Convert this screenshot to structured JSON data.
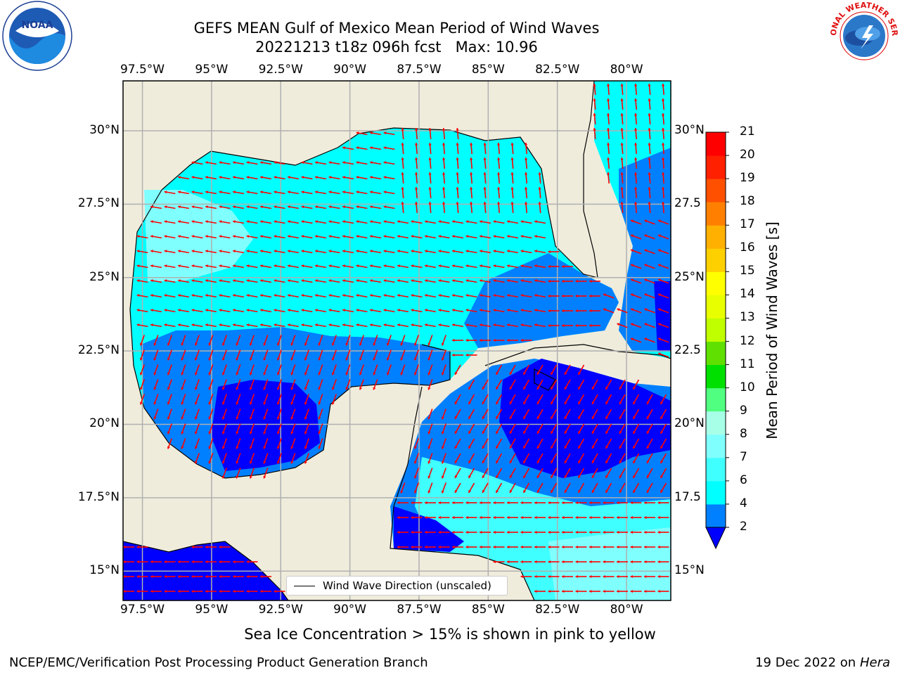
{
  "title": {
    "line1": "GEFS MEAN Gulf of Mexico Mean Period of Wind Waves",
    "line2": "20221213 t18z 096h fcst   Max: 10.96"
  },
  "map": {
    "lon_labels": [
      "97.5°W",
      "95°W",
      "92.5°W",
      "90°W",
      "87.5°W",
      "85°W",
      "82.5°W",
      "80°W"
    ],
    "lat_labels_left": [
      "30°N",
      "27.5°N",
      "25°N",
      "22.5°N",
      "20°N",
      "17.5°N",
      "15°N"
    ],
    "lat_labels_right": [
      "30°N",
      "27.5",
      "25°N",
      "22.5",
      "20°N",
      "17.5",
      "15°N"
    ],
    "extent": {
      "lon": [
        -98.2,
        -78.4
      ],
      "lat": [
        14.0,
        31.7
      ]
    },
    "colors": {
      "land": "#efecdc",
      "grid": "#b0b0b0",
      "vector": "#ff0000",
      "coast": "#000000"
    }
  },
  "legend": {
    "label": "Wind Wave Direction (unscaled)"
  },
  "colorbar": {
    "title": "Mean Period of Wind Waves [s]",
    "levels": [
      "2",
      "4",
      "6",
      "7",
      "8",
      "9",
      "10",
      "11",
      "12",
      "13",
      "14",
      "15",
      "16",
      "17",
      "18",
      "19",
      "20",
      "21"
    ],
    "colors": [
      "#0000ff",
      "#0080ff",
      "#00ffff",
      "#40ffff",
      "#80ffff",
      "#a8ffe8",
      "#50ff80",
      "#00e000",
      "#60e000",
      "#c0ff00",
      "#e8ff00",
      "#ffff00",
      "#ffd000",
      "#ffb000",
      "#ff8000",
      "#ff5000",
      "#ff2000",
      "#ff0000"
    ],
    "extend": "min"
  },
  "subtitle": "Sea Ice Concentration > 15% is shown in pink to yellow",
  "footer": {
    "left": "NCEP/EMC/Verification Post Processing Product Generation Branch",
    "date": "19 Dec 2022 on",
    "host": "Hera"
  },
  "logos": {
    "noaa": "NOAA",
    "nws": "NATIONAL WEATHER SERVICE"
  }
}
